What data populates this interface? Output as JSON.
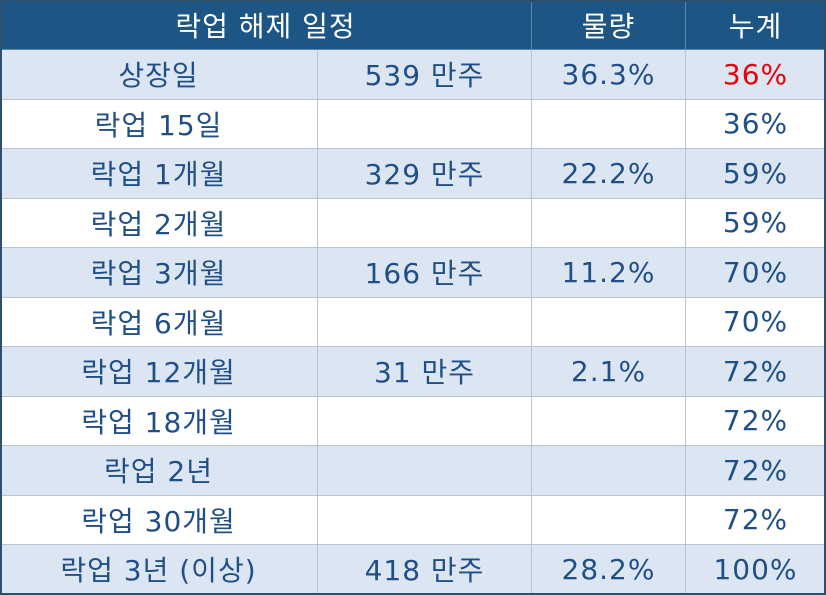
{
  "header": [
    "락업 해제 일정",
    "물량",
    "누계"
  ],
  "table": {
    "rows": [
      [
        "상장일",
        "539 만주",
        "36.3%",
        "36%"
      ],
      [
        "락업 15일",
        null,
        null,
        "36%"
      ],
      [
        "락업 1개월",
        "329 만주",
        "22.2%",
        "59%"
      ],
      [
        "락업 2개월",
        null,
        null,
        "59%"
      ],
      [
        "락업 3개월",
        "166 만주",
        "11.2%",
        "70%"
      ],
      [
        "락업 6개월",
        null,
        null,
        "70%"
      ],
      [
        "락업 12개월",
        "31 만주",
        "2.1%",
        "72%"
      ],
      [
        "락업 18개월",
        null,
        null,
        "72%"
      ],
      [
        "락업 2년",
        null,
        null,
        "72%"
      ],
      [
        "락업 30개월",
        null,
        null,
        "72%"
      ],
      [
        "락업 3년 (이상)",
        "418 만주",
        "28.2%",
        "100%"
      ]
    ]
  }
}
